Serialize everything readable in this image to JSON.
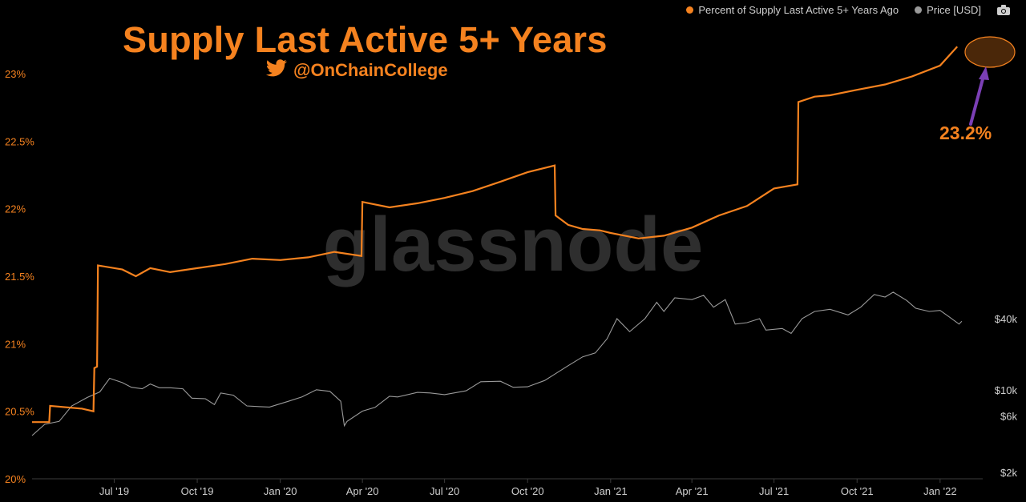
{
  "title": "Supply Last Active 5+ Years",
  "handle": "@OnChainCollege",
  "watermark": "glassnode",
  "annotation": "23.2%",
  "legend": {
    "supply_label": "Percent of Supply Last Active 5+ Years Ago",
    "price_label": "Price [USD]"
  },
  "colors": {
    "supply": "#f5821f",
    "price": "#9a9a9a",
    "arrow": "#7b3fb5",
    "background": "#000000"
  },
  "icons": [
    "twitter-bird-icon",
    "camera-icon"
  ],
  "chart_data": {
    "type": "line",
    "x_ticks": [
      "Jul '19",
      "Oct '19",
      "Jan '20",
      "Apr '20",
      "Jul '20",
      "Oct '20",
      "Jan '21",
      "Apr '21",
      "Jul '21",
      "Oct '21",
      "Jan '22"
    ],
    "y_left_ticks": [
      "20%",
      "20.5%",
      "21%",
      "21.5%",
      "22%",
      "22.5%",
      "23%"
    ],
    "y_left_range": [
      20,
      23.3
    ],
    "y_right_ticks": [
      "$2k",
      "$6k",
      "$10k",
      "$40k"
    ],
    "y_right_scale": "log",
    "series": [
      {
        "name": "Percent of Supply Last Active 5+ Years Ago",
        "axis": "left",
        "x": [
          "2019-04-01",
          "2019-04-20",
          "2019-04-21",
          "2019-05-25",
          "2019-05-26",
          "2019-06-08",
          "2019-06-09",
          "2019-06-12",
          "2019-06-13",
          "2019-07-10",
          "2019-07-25",
          "2019-08-10",
          "2019-09-01",
          "2019-10-01",
          "2019-11-01",
          "2019-12-01",
          "2020-01-01",
          "2020-02-01",
          "2020-03-01",
          "2020-03-31",
          "2020-04-01",
          "2020-05-01",
          "2020-06-01",
          "2020-07-01",
          "2020-08-01",
          "2020-09-01",
          "2020-10-01",
          "2020-10-31",
          "2020-11-01",
          "2020-11-15",
          "2020-12-01",
          "2020-12-20",
          "2021-01-01",
          "2021-02-01",
          "2021-03-01",
          "2021-04-01",
          "2021-05-01",
          "2021-06-01",
          "2021-07-01",
          "2021-07-27",
          "2021-07-28",
          "2021-08-15",
          "2021-09-01",
          "2021-10-01",
          "2021-11-01",
          "2021-12-01",
          "2022-01-01",
          "2022-01-20"
        ],
        "y": [
          20.42,
          20.42,
          20.54,
          20.52,
          20.52,
          20.5,
          20.82,
          20.83,
          21.58,
          21.55,
          21.5,
          21.56,
          21.53,
          21.56,
          21.59,
          21.63,
          21.62,
          21.64,
          21.68,
          21.65,
          22.05,
          22.01,
          22.04,
          22.08,
          22.13,
          22.2,
          22.27,
          22.32,
          21.95,
          21.88,
          21.85,
          21.84,
          21.82,
          21.78,
          21.8,
          21.86,
          21.95,
          22.02,
          22.15,
          22.18,
          22.79,
          22.83,
          22.84,
          22.88,
          22.92,
          22.98,
          23.06,
          23.2
        ]
      },
      {
        "name": "Price [USD]",
        "axis": "right",
        "x": [
          "2019-04-01",
          "2019-04-15",
          "2019-05-01",
          "2019-05-15",
          "2019-06-01",
          "2019-06-15",
          "2019-06-26",
          "2019-07-10",
          "2019-07-20",
          "2019-08-01",
          "2019-08-10",
          "2019-08-20",
          "2019-09-01",
          "2019-09-15",
          "2019-09-25",
          "2019-10-10",
          "2019-10-20",
          "2019-10-27",
          "2019-11-10",
          "2019-11-25",
          "2019-12-10",
          "2019-12-20",
          "2020-01-10",
          "2020-01-25",
          "2020-02-10",
          "2020-02-25",
          "2020-03-08",
          "2020-03-12",
          "2020-03-15",
          "2020-04-01",
          "2020-04-15",
          "2020-05-01",
          "2020-05-10",
          "2020-06-01",
          "2020-06-15",
          "2020-07-01",
          "2020-07-25",
          "2020-08-10",
          "2020-09-01",
          "2020-09-15",
          "2020-10-01",
          "2020-10-20",
          "2020-11-01",
          "2020-11-15",
          "2020-12-01",
          "2020-12-15",
          "2020-12-28",
          "2021-01-08",
          "2021-01-22",
          "2021-02-08",
          "2021-02-21",
          "2021-03-01",
          "2021-03-13",
          "2021-04-01",
          "2021-04-14",
          "2021-04-25",
          "2021-05-08",
          "2021-05-19",
          "2021-06-01",
          "2021-06-15",
          "2021-06-22",
          "2021-07-10",
          "2021-07-20",
          "2021-08-01",
          "2021-08-15",
          "2021-09-01",
          "2021-09-21",
          "2021-10-05",
          "2021-10-20",
          "2021-11-01",
          "2021-11-10",
          "2021-11-25",
          "2021-12-05",
          "2021-12-20",
          "2022-01-01",
          "2022-01-10",
          "2022-01-22",
          "2022-01-25"
        ],
        "y": [
          4100,
          5100,
          5400,
          7300,
          8600,
          9600,
          12500,
          11500,
          10500,
          10200,
          11200,
          10400,
          10400,
          10200,
          8500,
          8400,
          7500,
          9400,
          9000,
          7300,
          7200,
          7150,
          8000,
          8700,
          10000,
          9700,
          8000,
          4970,
          5400,
          6600,
          7100,
          8800,
          8700,
          9500,
          9400,
          9100,
          9800,
          11700,
          11800,
          10500,
          10600,
          12000,
          13700,
          16000,
          19000,
          20500,
          27000,
          40000,
          31000,
          40000,
          55000,
          46000,
          60000,
          58000,
          63000,
          50000,
          58000,
          36000,
          37000,
          40000,
          32000,
          33000,
          30000,
          40000,
          46000,
          48000,
          43000,
          50000,
          64000,
          61000,
          67000,
          57000,
          49000,
          46000,
          47000,
          42000,
          36000,
          38000
        ]
      }
    ]
  }
}
